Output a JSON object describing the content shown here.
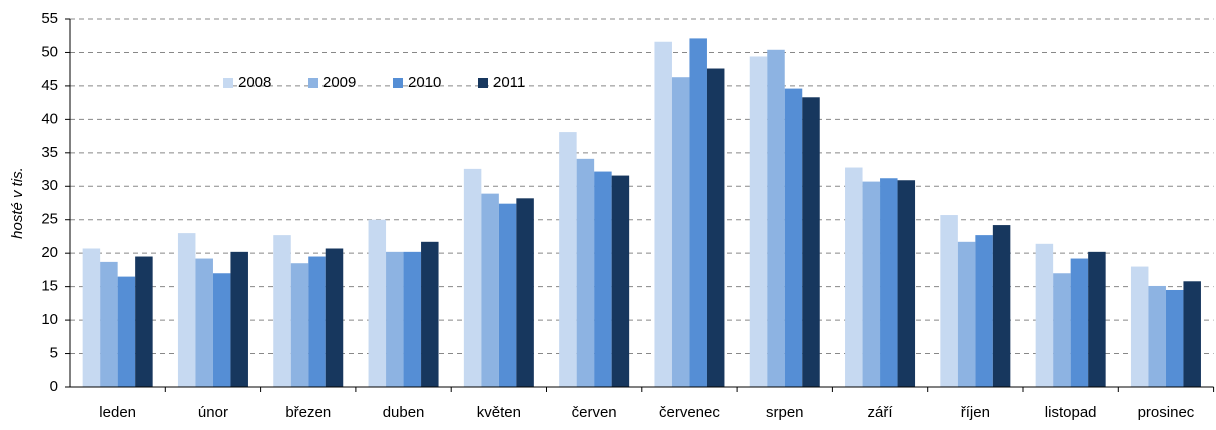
{
  "chart_data": {
    "type": "bar",
    "y_label": "hosté v tis.",
    "categories": [
      "leden",
      "únor",
      "březen",
      "duben",
      "květen",
      "červen",
      "červenec",
      "srpen",
      "září",
      "říjen",
      "listopad",
      "prosinec"
    ],
    "series": [
      {
        "name": "2008",
        "color": "#c6d9f1",
        "values": [
          20.7,
          23.0,
          22.7,
          25.0,
          32.6,
          38.1,
          51.6,
          49.4,
          32.8,
          25.7,
          21.4,
          18.0
        ]
      },
      {
        "name": "2009",
        "color": "#8db3e2",
        "values": [
          18.7,
          19.2,
          18.5,
          20.2,
          28.9,
          34.1,
          46.3,
          50.4,
          30.7,
          21.7,
          17.0,
          15.1
        ]
      },
      {
        "name": "2010",
        "color": "#558ed5",
        "values": [
          16.5,
          17.0,
          19.5,
          20.2,
          27.4,
          32.2,
          52.1,
          44.6,
          31.2,
          22.7,
          19.2,
          14.5
        ]
      },
      {
        "name": "2011",
        "color": "#17375e",
        "values": [
          19.5,
          20.2,
          20.7,
          21.7,
          28.2,
          31.6,
          47.6,
          43.3,
          30.9,
          24.2,
          20.2,
          15.8
        ]
      }
    ],
    "ylim": [
      0,
      55
    ],
    "yticks": [
      0,
      5,
      10,
      15,
      20,
      25,
      30,
      35,
      40,
      45,
      50,
      55
    ],
    "grid": true
  }
}
